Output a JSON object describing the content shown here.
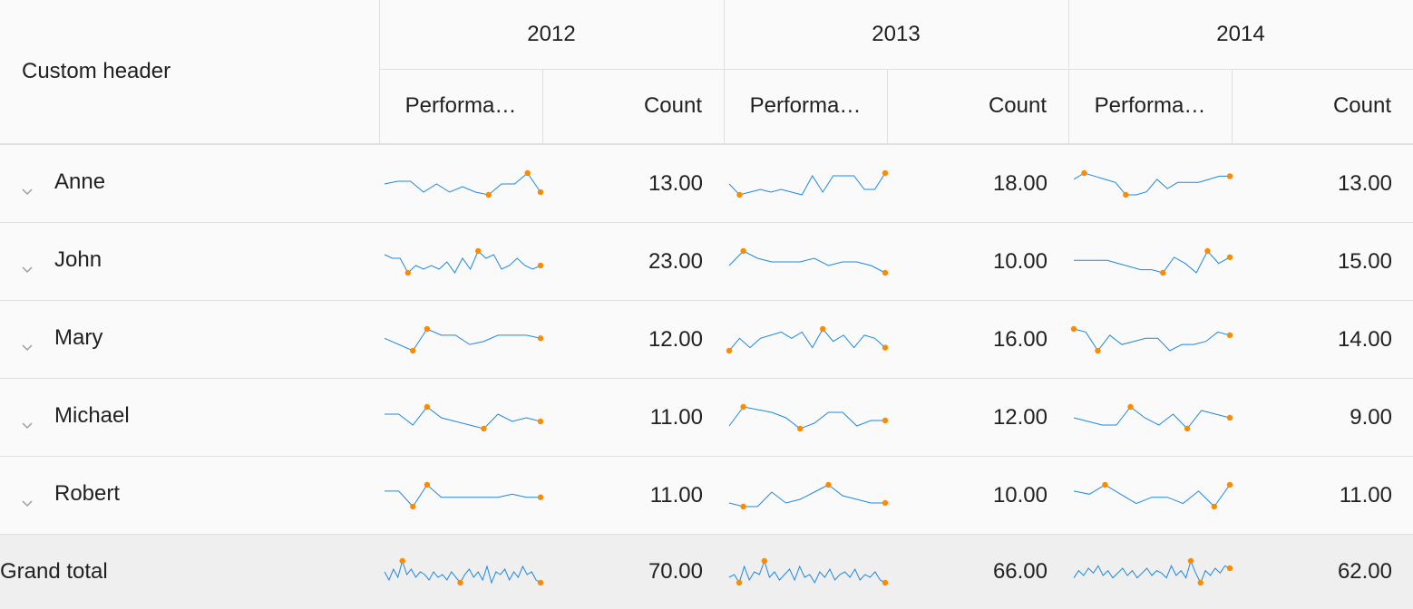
{
  "header": {
    "title": "Custom header",
    "years": [
      {
        "label": "2012",
        "columns": [
          "Performa…",
          "Count"
        ]
      },
      {
        "label": "2013",
        "columns": [
          "Performa…",
          "Count"
        ]
      },
      {
        "label": "2014",
        "columns": [
          "Performa…",
          "Count"
        ]
      }
    ]
  },
  "rows": [
    {
      "name": "Anne",
      "cells": [
        {
          "sparkline": [
            6,
            7,
            7,
            3,
            6,
            3,
            5,
            3,
            2,
            6,
            6,
            10,
            3
          ],
          "count": "13.00"
        },
        {
          "sparkline": [
            6,
            2,
            3,
            4,
            3,
            4,
            3,
            2,
            9,
            3,
            9,
            9,
            9,
            4,
            4,
            10
          ],
          "count": "18.00"
        },
        {
          "sparkline": [
            7,
            9,
            8,
            7,
            6,
            2,
            2,
            3,
            7,
            4,
            6,
            6,
            6,
            7,
            8,
            8
          ],
          "count": "13.00"
        }
      ]
    },
    {
      "name": "John",
      "cells": [
        {
          "sparkline": [
            7,
            6,
            6,
            2,
            4,
            3,
            4,
            3,
            5,
            2,
            6,
            3,
            8,
            6,
            7,
            3,
            4,
            6,
            4,
            3,
            4
          ],
          "count": "23.00"
        },
        {
          "sparkline": [
            4,
            8,
            6,
            5,
            5,
            5,
            6,
            4,
            5,
            5,
            4,
            2
          ],
          "count": "10.00"
        },
        {
          "sparkline": [
            6,
            6,
            6,
            6,
            5,
            4,
            3,
            3,
            2,
            7,
            5,
            2,
            9,
            5,
            7
          ],
          "count": "15.00"
        }
      ]
    },
    {
      "name": "Mary",
      "cells": [
        {
          "sparkline": [
            6,
            4,
            2,
            9,
            7,
            7,
            4,
            5,
            7,
            7,
            7,
            6
          ],
          "count": "12.00"
        },
        {
          "sparkline": [
            2,
            6,
            3,
            6,
            7,
            8,
            6,
            8,
            3,
            9,
            5,
            7,
            3,
            7,
            6,
            3
          ],
          "count": "16.00"
        },
        {
          "sparkline": [
            9,
            8,
            2,
            7,
            4,
            5,
            6,
            6,
            2,
            4,
            4,
            5,
            8,
            7
          ],
          "count": "14.00"
        }
      ]
    },
    {
      "name": "Michael",
      "cells": [
        {
          "sparkline": [
            7,
            7,
            4,
            9,
            6,
            5,
            4,
            3,
            7,
            5,
            6,
            5
          ],
          "count": "11.00"
        },
        {
          "sparkline": [
            3,
            10,
            9,
            8,
            6,
            2,
            4,
            8,
            8,
            3,
            5,
            5
          ],
          "count": "12.00"
        },
        {
          "sparkline": [
            6,
            5,
            4,
            4,
            9,
            6,
            4,
            7,
            3,
            8,
            7,
            6
          ],
          "count": "9.00"
        }
      ]
    },
    {
      "name": "Robert",
      "cells": [
        {
          "sparkline": [
            7,
            7,
            2,
            9,
            5,
            5,
            5,
            5,
            5,
            6,
            5,
            5
          ],
          "count": "11.00"
        },
        {
          "sparkline": [
            3,
            2,
            2,
            6,
            3,
            4,
            6,
            8,
            5,
            4,
            3,
            3
          ],
          "count": "10.00"
        },
        {
          "sparkline": [
            7,
            6,
            9,
            6,
            3,
            5,
            5,
            3,
            7,
            2,
            9
          ],
          "count": "11.00"
        }
      ]
    }
  ],
  "total": {
    "label": "Grand total",
    "cells": [
      {
        "sparkline": [
          6,
          3,
          7,
          4,
          10,
          5,
          7,
          4,
          6,
          5,
          3,
          6,
          4,
          5,
          3,
          6,
          4,
          2,
          5,
          7,
          4,
          6,
          3,
          8,
          2,
          6,
          5,
          7,
          3,
          6,
          4,
          8,
          5,
          6,
          3,
          2
        ],
        "count": "70.00"
      },
      {
        "sparkline": [
          4,
          5,
          2,
          8,
          3,
          6,
          5,
          10,
          4,
          6,
          3,
          5,
          7,
          3,
          8,
          4,
          5,
          2,
          6,
          4,
          7,
          3,
          5,
          6,
          4,
          7,
          3,
          5,
          4,
          6,
          3,
          2
        ],
        "count": "66.00"
      },
      {
        "sparkline": [
          3,
          6,
          4,
          7,
          5,
          8,
          4,
          6,
          3,
          5,
          7,
          4,
          6,
          3,
          5,
          7,
          4,
          6,
          5,
          3,
          8,
          4,
          6,
          3,
          10,
          5,
          1,
          6,
          4,
          7,
          5,
          8,
          7
        ],
        "count": "62.00"
      }
    ]
  }
}
